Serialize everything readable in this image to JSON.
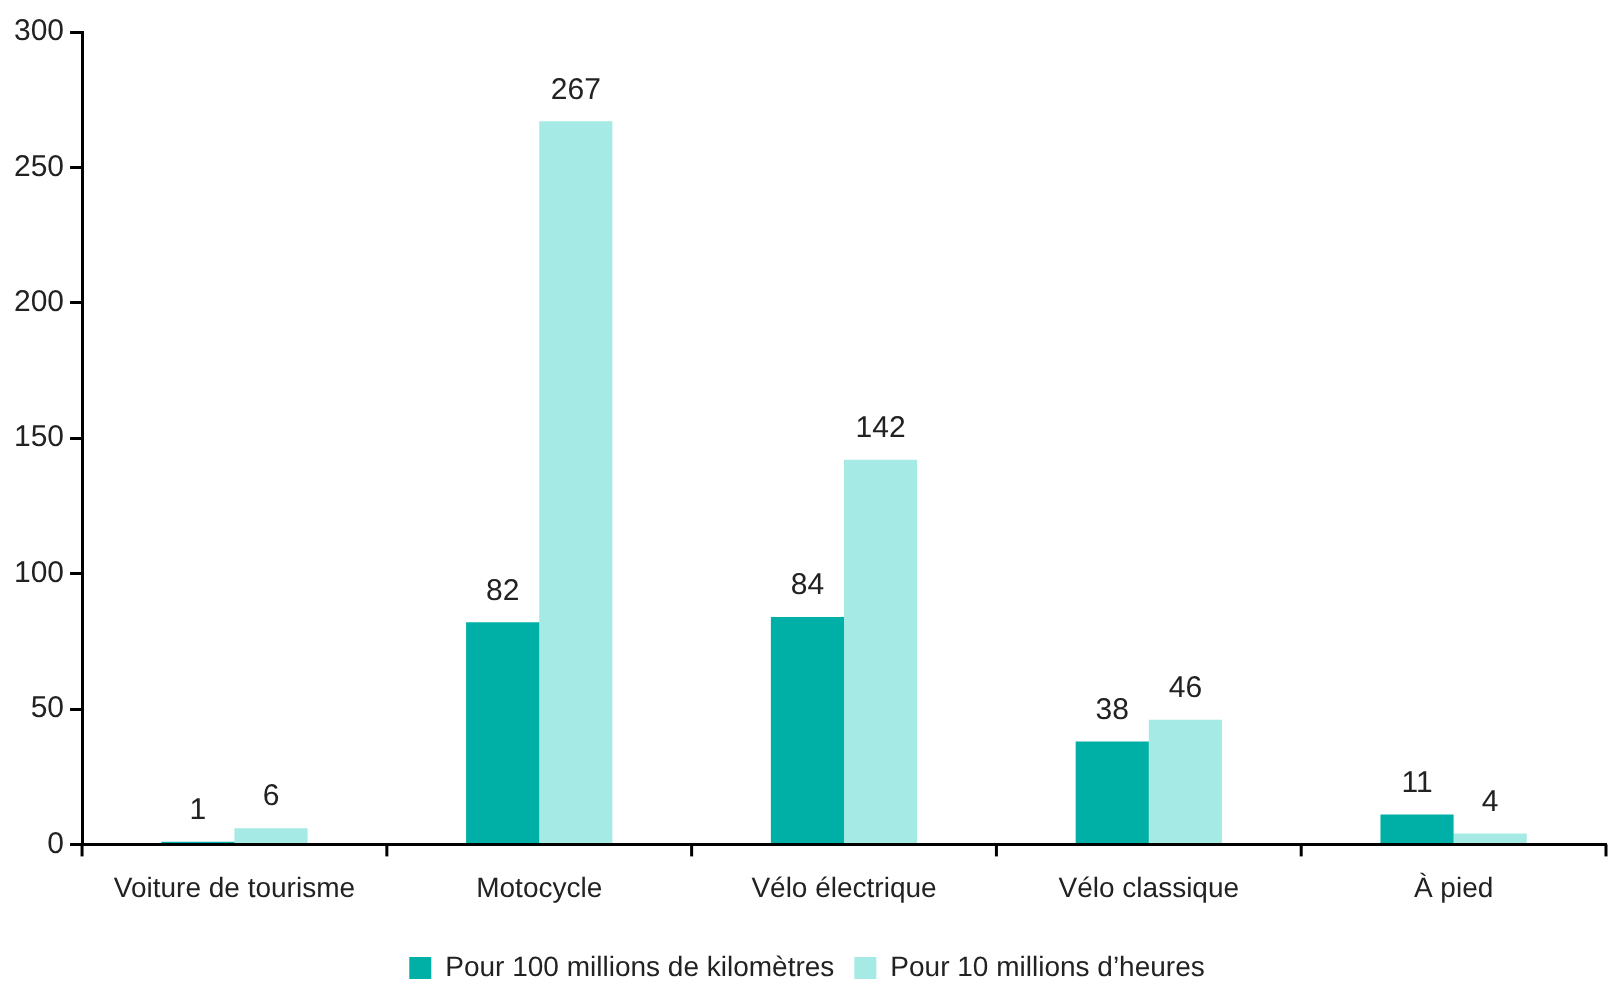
{
  "chart_data": {
    "type": "bar",
    "categories": [
      "Voiture de tourisme",
      "Motocycle",
      "Vélo électrique",
      "Vélo classique",
      "À pied"
    ],
    "series": [
      {
        "name": "Pour 100 millions de kilomètres",
        "color": "#00b0a6",
        "values": [
          1,
          82,
          84,
          38,
          11
        ]
      },
      {
        "name": "Pour 10 millions d’heures",
        "color": "#a5eae4",
        "values": [
          6,
          267,
          142,
          46,
          4
        ]
      }
    ],
    "ylim": [
      0,
      300
    ],
    "yticks": [
      0,
      50,
      100,
      150,
      200,
      250,
      300
    ],
    "grid": false,
    "legend": "bottom",
    "data_labels": true
  }
}
